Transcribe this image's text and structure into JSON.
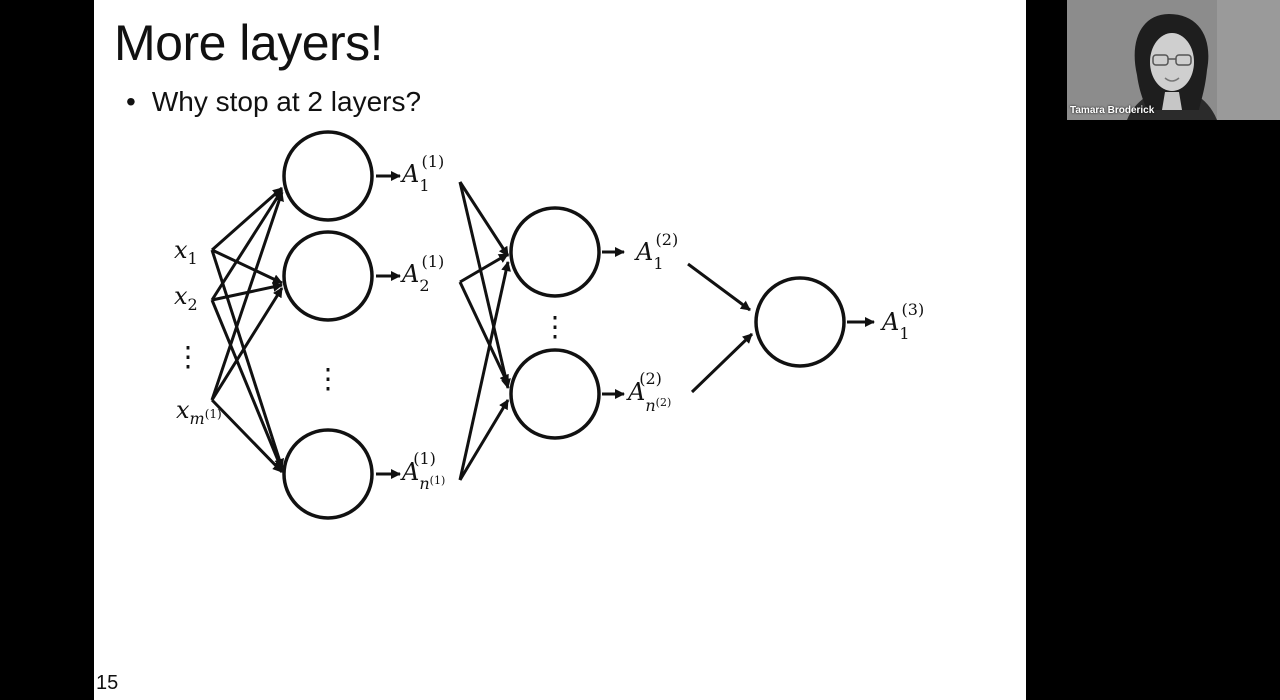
{
  "slide": {
    "title": "More layers!",
    "bullet": "Why stop at 2 layers?",
    "number": "15",
    "diagram": {
      "inputs": [
        {
          "base": "x",
          "sub": "1"
        },
        {
          "base": "x",
          "sub": "2"
        },
        {
          "base": "⋮",
          "sub": ""
        },
        {
          "base": "x",
          "sub": "m",
          "subsup": "(1)"
        }
      ],
      "layer1_outputs": [
        {
          "base": "A",
          "sub": "1",
          "sup": "(1)"
        },
        {
          "base": "A",
          "sub": "2",
          "sup": "(1)"
        },
        {
          "base": "A",
          "sub": "n",
          "subsup": "(1)",
          "sup": "(1)"
        }
      ],
      "layer2_outputs": [
        {
          "base": "A",
          "sub": "1",
          "sup": "(2)"
        },
        {
          "base": "A",
          "sub": "n",
          "subsup": "(2)",
          "sup": "(2)"
        }
      ],
      "layer3_outputs": [
        {
          "base": "A",
          "sub": "1",
          "sup": "(3)"
        }
      ]
    }
  },
  "video": {
    "participant_name": "Tamara Broderick",
    "background_color": "#8a8a8a"
  }
}
